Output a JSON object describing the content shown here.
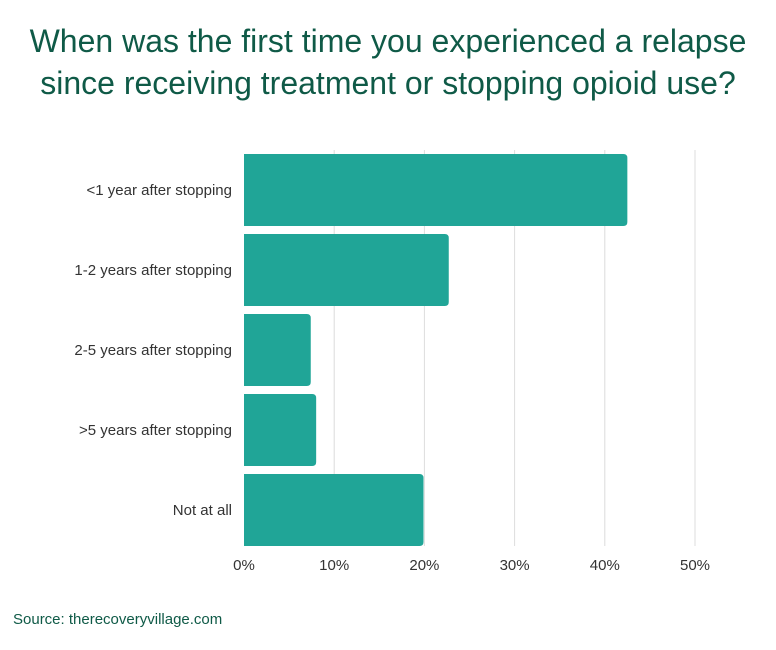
{
  "title_line1": "When was the first time you experienced a relapse",
  "title_line2": "since receiving treatment or stopping opioid use?",
  "source": "Source: therecoveryvillage.com",
  "colors": {
    "title": "#0f5a47",
    "bar": "#20a597",
    "grid": "#dcdcdc",
    "label": "#333333"
  },
  "chart_data": {
    "type": "bar",
    "orientation": "horizontal",
    "categories": [
      "<1 year after stopping",
      "1-2 years after stopping",
      "2-5 years after stopping",
      ">5 years after stopping",
      "Not at all"
    ],
    "values": [
      42.5,
      22.7,
      7.4,
      8.0,
      19.9
    ],
    "xlim": [
      0,
      50
    ],
    "x_ticks": [
      0,
      10,
      20,
      30,
      40,
      50
    ],
    "x_tick_labels": [
      "0%",
      "10%",
      "20%",
      "30%",
      "40%",
      "50%"
    ],
    "grid": true
  }
}
